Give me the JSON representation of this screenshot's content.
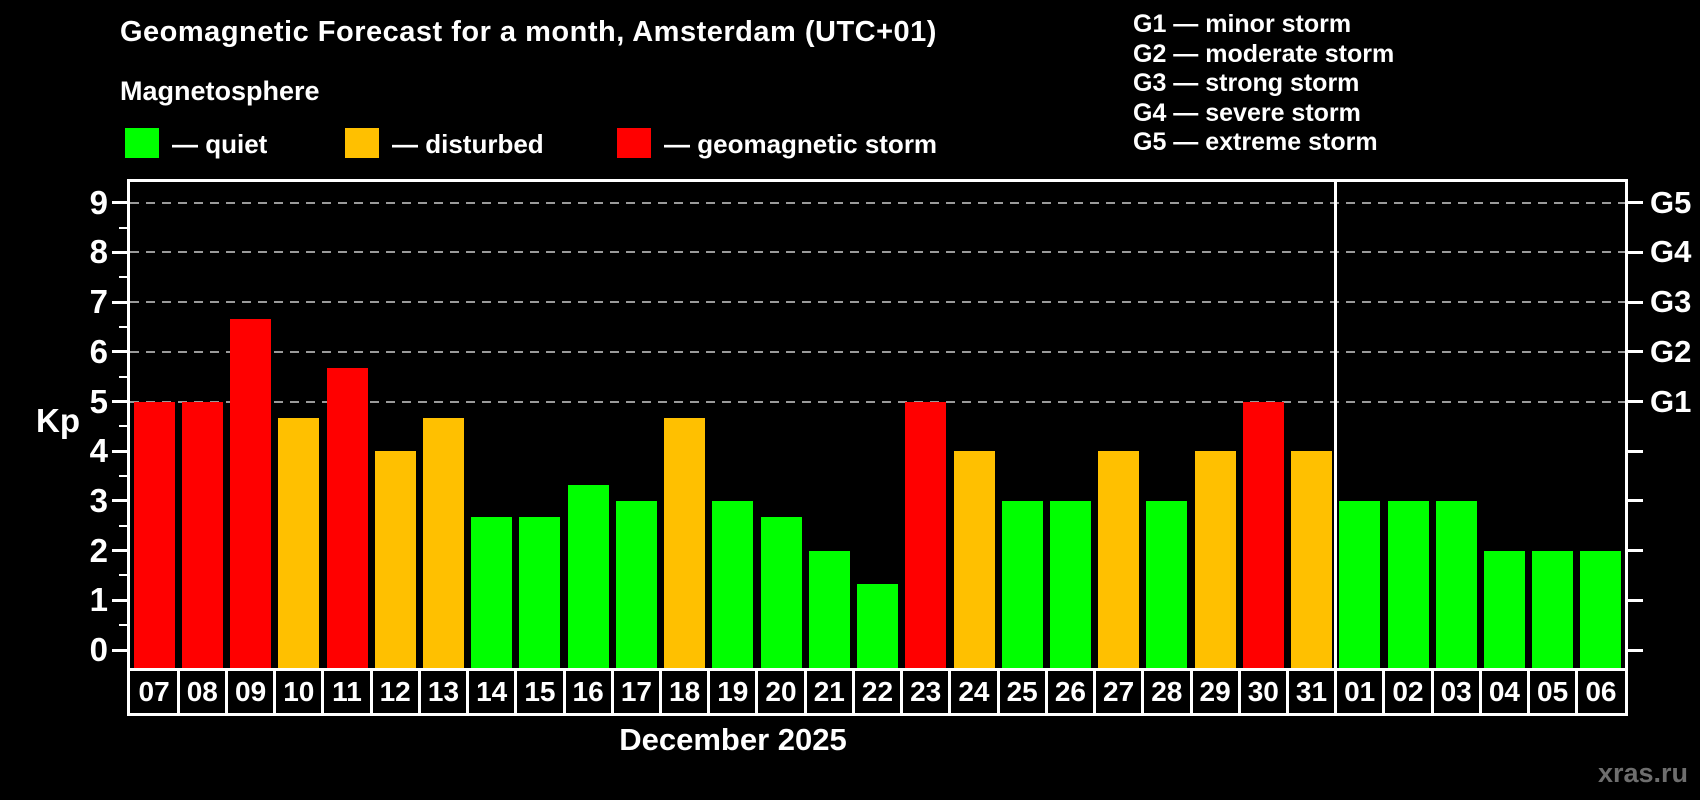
{
  "title": "Geomagnetic Forecast for a month, Amsterdam (UTC+01)",
  "subtitle": "Magnetosphere",
  "legend": {
    "quiet_label": "— quiet",
    "disturbed_label": "— disturbed",
    "storm_label": "— geomagnetic storm"
  },
  "g_legend": [
    "G1 — minor storm",
    "G2 — moderate storm",
    "G3 — strong storm",
    "G4 — severe storm",
    "G5 — extreme storm"
  ],
  "axis": {
    "kp_label": "Kp",
    "y_ticks": [
      0,
      1,
      2,
      3,
      4,
      5,
      6,
      7,
      8,
      9
    ],
    "right_labels": [
      {
        "kp": 5,
        "label": "G1"
      },
      {
        "kp": 6,
        "label": "G2"
      },
      {
        "kp": 7,
        "label": "G3"
      },
      {
        "kp": 8,
        "label": "G4"
      },
      {
        "kp": 9,
        "label": "G5"
      }
    ]
  },
  "month_label": "December 2025",
  "watermark": "xras.ru",
  "colors": {
    "quiet": "#00ff00",
    "disturbed": "#ffc000",
    "storm": "#ff0000",
    "grid": "#9a9a9a",
    "axis": "#ffffff"
  },
  "chart_data": {
    "type": "bar",
    "title": "Geomagnetic Forecast for a month, Amsterdam (UTC+01)",
    "xlabel": "December 2025",
    "ylabel": "Kp",
    "ylim": [
      -0.4,
      9.4
    ],
    "grid_levels": [
      5,
      6,
      7,
      8,
      9
    ],
    "legend_position": "top",
    "categories": [
      "07",
      "08",
      "09",
      "10",
      "11",
      "12",
      "13",
      "14",
      "15",
      "16",
      "17",
      "18",
      "19",
      "20",
      "21",
      "22",
      "23",
      "24",
      "25",
      "26",
      "27",
      "28",
      "29",
      "30",
      "31",
      "01",
      "02",
      "03",
      "04",
      "05",
      "06"
    ],
    "values": [
      5.0,
      5.0,
      6.67,
      4.67,
      5.67,
      4.0,
      4.67,
      2.67,
      2.67,
      3.33,
      3.0,
      4.67,
      3.0,
      2.67,
      2.0,
      1.33,
      5.0,
      4.0,
      3.0,
      3.0,
      4.0,
      3.0,
      4.0,
      5.0,
      4.0,
      3.0,
      3.0,
      3.0,
      2.0,
      2.0,
      2.0
    ],
    "statuses": [
      "storm",
      "storm",
      "storm",
      "disturbed",
      "storm",
      "disturbed",
      "disturbed",
      "quiet",
      "quiet",
      "quiet",
      "quiet",
      "disturbed",
      "quiet",
      "quiet",
      "quiet",
      "quiet",
      "storm",
      "disturbed",
      "quiet",
      "quiet",
      "disturbed",
      "quiet",
      "disturbed",
      "storm",
      "disturbed",
      "quiet",
      "quiet",
      "quiet",
      "quiet",
      "quiet",
      "quiet"
    ],
    "month_divider_after_index": 24
  }
}
